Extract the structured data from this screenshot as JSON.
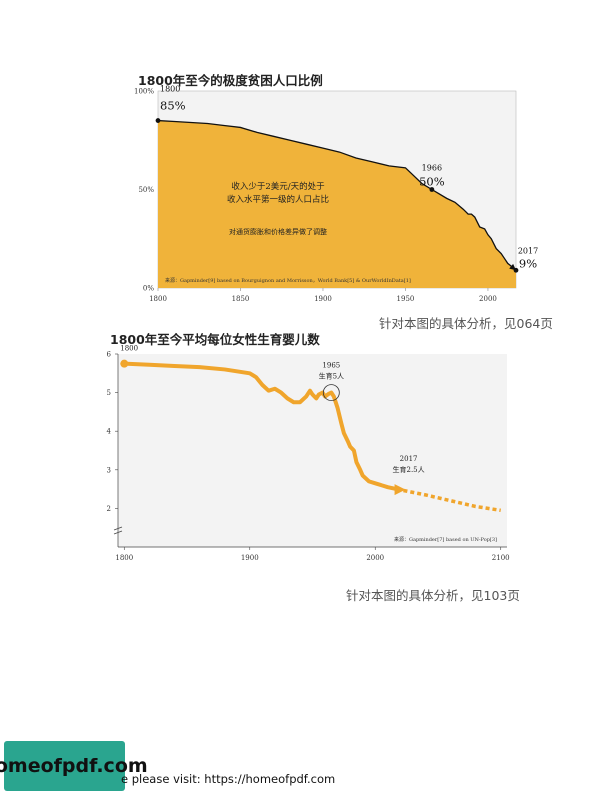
{
  "chart_data": [
    {
      "type": "area",
      "title": "1800年至今的极度贫困人口比例",
      "xlim": [
        1800,
        2017
      ],
      "ylim": [
        0,
        100
      ],
      "x_ticks": [
        1800,
        1850,
        1900,
        1950,
        2000
      ],
      "y_ticks": [
        {
          "value": 0,
          "label": "0%"
        },
        {
          "value": 50,
          "label": "50%"
        },
        {
          "value": 100,
          "label": "100%"
        }
      ],
      "x": [
        1800,
        1810,
        1820,
        1830,
        1840,
        1850,
        1860,
        1870,
        1880,
        1890,
        1900,
        1910,
        1920,
        1930,
        1940,
        1950,
        1955,
        1960,
        1966,
        1970,
        1975,
        1980,
        1985,
        1988,
        1990,
        1992,
        1995,
        1998,
        2000,
        2002,
        2005,
        2008,
        2010,
        2012,
        2015,
        2017
      ],
      "values": [
        85,
        84.5,
        84,
        83.5,
        82.5,
        81.5,
        79,
        77,
        75,
        73,
        71,
        69,
        66,
        64,
        62,
        61,
        57,
        53,
        50,
        48,
        45.5,
        43.5,
        40,
        37.5,
        37.5,
        36,
        31,
        30,
        27,
        25,
        20,
        17.5,
        15,
        12.5,
        10.5,
        9
      ],
      "fill_color": "#f0b33a",
      "line_color": "#111111",
      "annotations": [
        {
          "x": 1800,
          "y": 85,
          "year": "1800",
          "value": "85%"
        },
        {
          "x": 1966,
          "y": 50,
          "year": "1966",
          "value": "50%"
        },
        {
          "x": 2017,
          "y": 9,
          "year": "2017",
          "value": "9%"
        }
      ],
      "center_text": [
        "收入少于2美元/天的处于",
        "收入水平第一级的人口占比",
        "对通货膨胀和价格差异做了调整"
      ],
      "source": "来源：Gapminder[9] based on Bourguignon and Morrisson，World Bank[5] & OurWorldInData[1]",
      "reference": "针对本图的具体分析，见064页"
    },
    {
      "type": "line",
      "title": "1800年至今平均每位女性生育婴儿数",
      "xlim": [
        1795,
        2105
      ],
      "ylim": [
        1,
        6
      ],
      "x_ticks": [
        1800,
        1900,
        2000,
        2100
      ],
      "y_ticks": [
        2,
        3,
        4,
        5,
        6
      ],
      "series": [
        {
          "x": [
            1800,
            1820,
            1840,
            1860,
            1880,
            1900,
            1905,
            1910,
            1915,
            1920,
            1925,
            1930,
            1935,
            1940,
            1945,
            1948,
            1950,
            1953,
            1955,
            1958,
            1960,
            1963,
            1965,
            1967,
            1970,
            1973,
            1975,
            1978,
            1980,
            1983,
            1985,
            1988,
            1990,
            1995,
            2000,
            2005,
            2010,
            2017
          ],
          "values": [
            5.75,
            5.72,
            5.69,
            5.66,
            5.6,
            5.5,
            5.4,
            5.2,
            5.05,
            5.1,
            5.0,
            4.85,
            4.75,
            4.75,
            4.9,
            5.05,
            4.95,
            4.85,
            4.95,
            5.0,
            4.9,
            4.97,
            5.0,
            4.9,
            4.6,
            4.2,
            3.95,
            3.75,
            3.6,
            3.5,
            3.2,
            3.0,
            2.85,
            2.7,
            2.65,
            2.6,
            2.55,
            2.5
          ]
        },
        {
          "x": [
            2017,
            2040,
            2060,
            2080,
            2100
          ],
          "values": [
            2.5,
            2.35,
            2.2,
            2.05,
            1.95
          ]
        }
      ],
      "line_color": "#f0a52c",
      "annotations": [
        {
          "x": 1800,
          "y": 5.75,
          "lines": [
            "1800"
          ]
        },
        {
          "x": 1965,
          "y": 5.0,
          "lines": [
            "1965",
            "生育5人"
          ]
        },
        {
          "x": 2017,
          "y": 2.5,
          "lines": [
            "2017",
            "生育2.5人"
          ]
        }
      ],
      "source": "来源：Gapminder[7] based on UN-Pop[3]",
      "reference": "针对本图的具体分析，见103页"
    }
  ],
  "footer": {
    "logo": "homeofpdf.com",
    "text": "e please visit: https://homeofpdf.com"
  }
}
